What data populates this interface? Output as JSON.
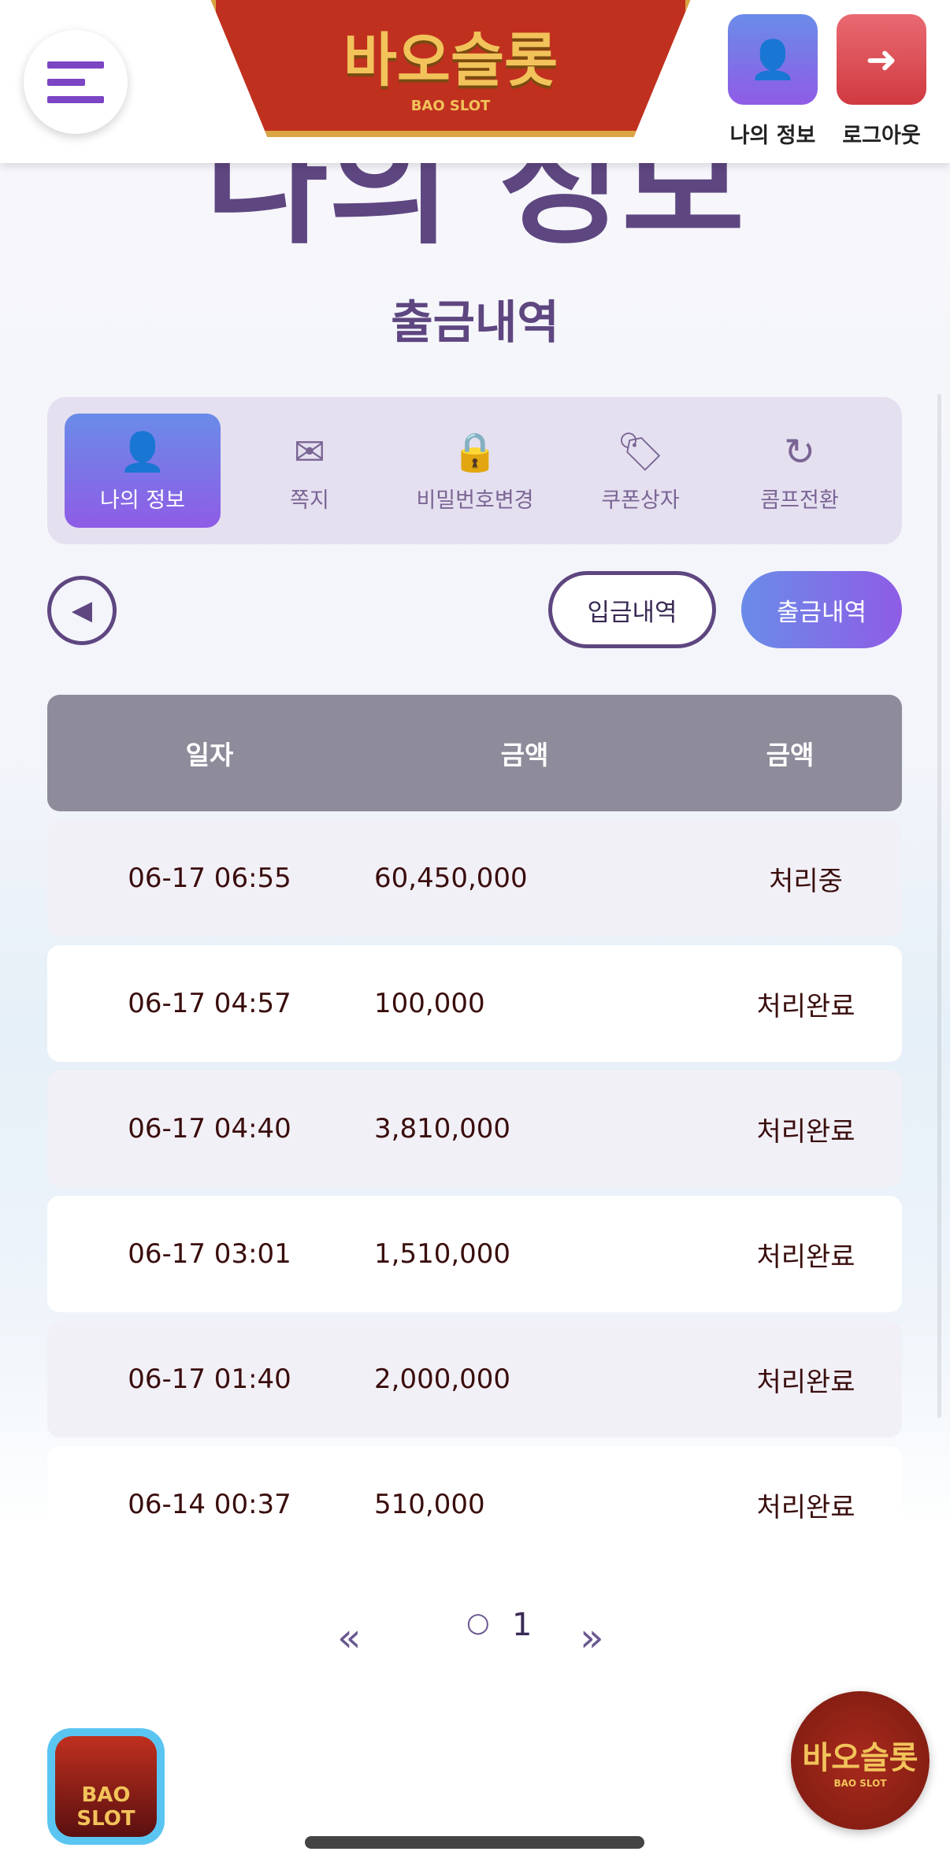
{
  "header": {
    "logo_text": "바오슬롯",
    "logo_sub": "BAO SLOT",
    "my_info_label": "나의 정보",
    "logout_label": "로그아웃",
    "my_info_icon": "user-gear-icon",
    "logout_icon": "sign-out-icon",
    "my_info_color": "#7b6fe8",
    "logout_color": "#d9434a"
  },
  "page": {
    "title": "나의 정보",
    "subtitle": "출금내역"
  },
  "tabs": [
    {
      "label": "나의 정보",
      "icon": "user-tie-icon",
      "active": true
    },
    {
      "label": "쪽지",
      "icon": "envelope-icon"
    },
    {
      "label": "비밀번호변경",
      "icon": "lock-icon"
    },
    {
      "label": "쿠폰상자",
      "icon": "tags-icon"
    },
    {
      "label": "콤프전환",
      "icon": "sync-icon"
    }
  ],
  "actions": {
    "deposit_label": "입금내역",
    "withdraw_label": "출금내역"
  },
  "table": {
    "headers": [
      "일자",
      "금액",
      "금액"
    ],
    "rows": [
      {
        "date": "06-17 06:55",
        "amount": "60,450,000",
        "status": "처리중"
      },
      {
        "date": "06-17 04:57",
        "amount": "100,000",
        "status": "처리완료"
      },
      {
        "date": "06-17 04:40",
        "amount": "3,810,000",
        "status": "처리완료"
      },
      {
        "date": "06-17 03:01",
        "amount": "1,510,000",
        "status": "처리완료"
      },
      {
        "date": "06-17 01:40",
        "amount": "2,000,000",
        "status": "처리완료"
      },
      {
        "date": "06-14 00:37",
        "amount": "510,000",
        "status": "처리완료"
      }
    ]
  },
  "pagination": {
    "prev": "«",
    "bullet": "○",
    "current": "1",
    "next": "»"
  },
  "floating": {
    "left_text": "BAO SLOT",
    "right_text": "바오슬롯",
    "right_sub": "BAO SLOT"
  }
}
